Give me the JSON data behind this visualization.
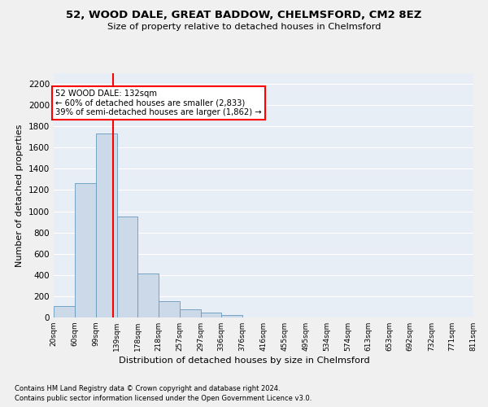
{
  "title": "52, WOOD DALE, GREAT BADDOW, CHELMSFORD, CM2 8EZ",
  "subtitle": "Size of property relative to detached houses in Chelmsford",
  "xlabel": "Distribution of detached houses by size in Chelmsford",
  "ylabel": "Number of detached properties",
  "bar_color": "#ccd9e8",
  "bar_edge_color": "#6699bb",
  "bg_color": "#e8eef6",
  "grid_color": "#ffffff",
  "vline_x": 132,
  "vline_color": "red",
  "annotation_text": "52 WOOD DALE: 132sqm\n← 60% of detached houses are smaller (2,833)\n39% of semi-detached houses are larger (1,862) →",
  "annotation_box_color": "white",
  "annotation_box_edge": "red",
  "bins": [
    20,
    60,
    99,
    139,
    178,
    218,
    257,
    297,
    336,
    376,
    416,
    455,
    495,
    534,
    574,
    613,
    653,
    692,
    732,
    771,
    811
  ],
  "bin_labels": [
    "20sqm",
    "60sqm",
    "99sqm",
    "139sqm",
    "178sqm",
    "218sqm",
    "257sqm",
    "297sqm",
    "336sqm",
    "376sqm",
    "416sqm",
    "455sqm",
    "495sqm",
    "534sqm",
    "574sqm",
    "613sqm",
    "653sqm",
    "692sqm",
    "732sqm",
    "771sqm",
    "811sqm"
  ],
  "values": [
    110,
    1265,
    1735,
    950,
    415,
    150,
    75,
    45,
    25,
    0,
    0,
    0,
    0,
    0,
    0,
    0,
    0,
    0,
    0,
    0
  ],
  "ylim": [
    0,
    2300
  ],
  "yticks": [
    0,
    200,
    400,
    600,
    800,
    1000,
    1200,
    1400,
    1600,
    1800,
    2000,
    2200
  ],
  "footer_line1": "Contains HM Land Registry data © Crown copyright and database right 2024.",
  "footer_line2": "Contains public sector information licensed under the Open Government Licence v3.0."
}
